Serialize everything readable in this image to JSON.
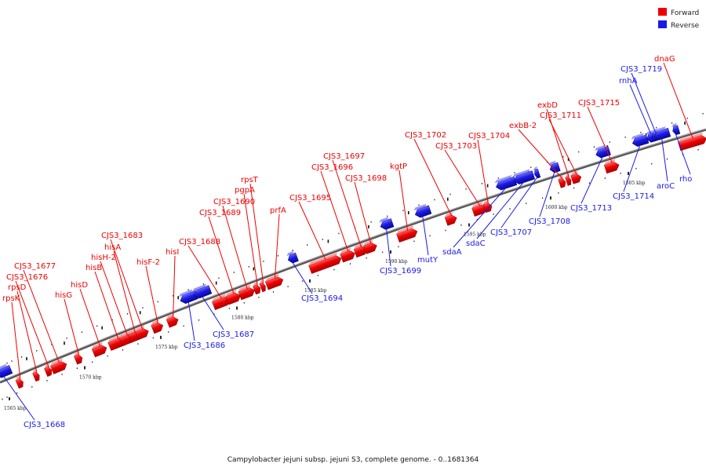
{
  "caption": "Campylobacter jejuni subsp. jejuni S3, complete genome. - 0..1681364",
  "colors": {
    "forward": "#ee0000",
    "reverse": "#1a1ae6",
    "backbone": "#777777",
    "tick": "#111111"
  },
  "legend": [
    {
      "label": "Forward",
      "color": "#ee0000"
    },
    {
      "label": "Reverse",
      "color": "#1a1ae6"
    }
  ],
  "scale_labels": [
    "1565 kbp",
    "1570 kbp",
    "1575 kbp",
    "1580 kbp",
    "1585 kbp",
    "1590 kbp",
    "1595 kbp",
    "1600 kbp",
    "1605 kbp"
  ],
  "forward_genes": [
    {
      "label": "rpsK",
      "pos": 1565.5
    },
    {
      "label": "rpsD",
      "pos": 1566.6
    },
    {
      "label": "CJS3_1676",
      "pos": 1567.4
    },
    {
      "label": "CJS3_1677",
      "pos": 1568.1
    },
    {
      "label": "hisG",
      "pos": 1569.4
    },
    {
      "label": "hisD",
      "pos": 1570.8
    },
    {
      "label": "hisB",
      "pos": 1572.0
    },
    {
      "label": "hisH-2",
      "pos": 1572.6
    },
    {
      "label": "hisA",
      "pos": 1573.1
    },
    {
      "label": "CJS3_1683",
      "pos": 1573.6
    },
    {
      "label": "hisF-2",
      "pos": 1574.6
    },
    {
      "label": "hisI",
      "pos": 1575.6
    },
    {
      "label": "CJS3_1688",
      "pos": 1578.8
    },
    {
      "label": "CJS3_1689",
      "pos": 1579.6
    },
    {
      "label": "CJS3_1690",
      "pos": 1580.5
    },
    {
      "label": "pgpA",
      "pos": 1581.2
    },
    {
      "label": "rpsT",
      "pos": 1581.6
    },
    {
      "label": "prfA",
      "pos": 1582.4
    },
    {
      "label": "CJS3_1695",
      "pos": 1585.8
    },
    {
      "label": "CJS3_1696",
      "pos": 1587.2
    },
    {
      "label": "CJS3_1697",
      "pos": 1588.0
    },
    {
      "label": "CJS3_1698",
      "pos": 1588.6
    },
    {
      "label": "kgtP",
      "pos": 1590.9
    },
    {
      "label": "CJS3_1702",
      "pos": 1593.7
    },
    {
      "label": "CJS3_1703",
      "pos": 1595.5
    },
    {
      "label": "CJS3_1704",
      "pos": 1596.0
    },
    {
      "label": "exbB-2",
      "pos": 1600.6
    },
    {
      "label": "exbD",
      "pos": 1601.0
    },
    {
      "label": "CJS3_1711",
      "pos": 1601.5
    },
    {
      "label": "CJS3_1715",
      "pos": 1603.8
    },
    {
      "label": "dnaG",
      "pos": 1609.0
    }
  ],
  "reverse_genes": [
    {
      "label": "CJS3_1668",
      "pos": 1564.4
    },
    {
      "label": "CJS3_1686",
      "pos": 1577.0
    },
    {
      "label": "CJS3_1687",
      "pos": 1577.9
    },
    {
      "label": "CJS3_1694",
      "pos": 1584.0
    },
    {
      "label": "CJS3_1699",
      "pos": 1589.9
    },
    {
      "label": "mutY",
      "pos": 1592.2
    },
    {
      "label": "sdaA",
      "pos": 1597.4
    },
    {
      "label": "sdaC",
      "pos": 1598.5
    },
    {
      "label": "CJS3_1707",
      "pos": 1599.3
    },
    {
      "label": "CJS3_1708",
      "pos": 1600.4
    },
    {
      "label": "CJS3_1713",
      "pos": 1603.5
    },
    {
      "label": "CJS3_1714",
      "pos": 1605.9
    },
    {
      "label": "rnhA",
      "pos": 1606.6
    },
    {
      "label": "CJS3_1719",
      "pos": 1606.9
    },
    {
      "label": "aroC",
      "pos": 1607.3
    },
    {
      "label": "rho",
      "pos": 1608.2
    }
  ]
}
